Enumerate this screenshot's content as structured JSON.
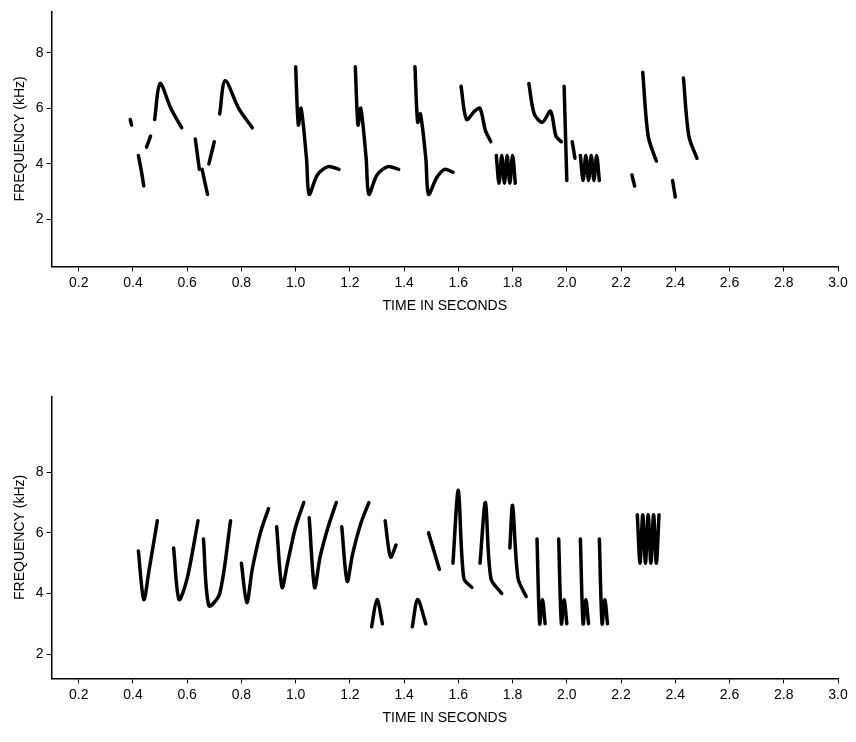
{
  "chart_data": [
    {
      "type": "line",
      "x_label": "TIME IN SECONDS",
      "y_label": "FREQUENCY (kHz)",
      "color": "#000000",
      "grid": false,
      "xlim": [
        0.1,
        3.0
      ],
      "xticks": [
        0.2,
        0.4,
        0.6,
        0.8,
        {
          "value": 1,
          "label": "1.0"
        },
        1.2,
        1.4,
        1.6,
        1.8,
        {
          "value": 2,
          "label": "2.0"
        },
        2.2,
        2.4,
        2.6,
        2.8,
        {
          "value": 3,
          "label": "3.0"
        }
      ],
      "ylim": [
        0.3,
        9.5
      ],
      "yticks": [
        2,
        4,
        6,
        8
      ],
      "notes": [
        {
          "x": [
            0.39,
            0.395
          ],
          "values": [
            5.6,
            5.4
          ]
        },
        {
          "x": [
            0.42,
            0.43,
            0.44
          ],
          "values": [
            4.3,
            3.8,
            3.2
          ]
        },
        {
          "x": [
            0.45,
            0.465
          ],
          "values": [
            4.6,
            5.0
          ]
        },
        {
          "x": [
            0.48,
            0.5,
            0.54,
            0.58
          ],
          "values": [
            5.6,
            6.9,
            6.0,
            5.3
          ]
        },
        {
          "x": [
            0.63,
            0.645
          ],
          "values": [
            4.9,
            3.8
          ]
        },
        {
          "x": [
            0.655,
            0.675
          ],
          "values": [
            3.8,
            2.9
          ]
        },
        {
          "x": [
            0.68,
            0.7
          ],
          "values": [
            4.0,
            4.8
          ]
        },
        {
          "x": [
            0.72,
            0.74,
            0.79,
            0.84
          ],
          "values": [
            5.8,
            7.0,
            6.0,
            5.3
          ]
        },
        {
          "x": [
            1.0,
            1.01,
            1.02,
            1.04,
            1.05,
            1.08,
            1.12,
            1.16
          ],
          "values": [
            7.5,
            5.4,
            6.0,
            4.2,
            2.9,
            3.6,
            3.9,
            3.8
          ]
        },
        {
          "x": [
            1.22,
            1.23,
            1.24,
            1.26,
            1.27,
            1.3,
            1.34,
            1.38
          ],
          "values": [
            7.5,
            5.4,
            6.0,
            4.2,
            2.9,
            3.6,
            3.9,
            3.8
          ]
        },
        {
          "x": [
            1.44,
            1.45,
            1.46,
            1.48,
            1.49,
            1.52,
            1.55,
            1.58
          ],
          "values": [
            7.5,
            5.5,
            5.8,
            4.2,
            2.9,
            3.5,
            3.8,
            3.7
          ]
        },
        {
          "x": [
            1.61,
            1.63,
            1.66,
            1.68,
            1.7,
            1.72
          ],
          "values": [
            6.8,
            5.6,
            5.9,
            6.0,
            5.2,
            4.8
          ]
        },
        {
          "x": [
            1.74,
            1.75,
            1.76,
            1.77,
            1.78,
            1.79,
            1.8,
            1.81
          ],
          "values": [
            4.3,
            3.3,
            4.3,
            3.3,
            4.3,
            3.3,
            4.3,
            3.3
          ]
        },
        {
          "x": [
            1.86,
            1.88,
            1.91,
            1.94,
            1.96,
            1.98
          ],
          "values": [
            6.9,
            5.8,
            5.5,
            5.9,
            5.0,
            4.8
          ]
        },
        {
          "x": [
            1.99,
            2.0
          ],
          "values": [
            6.8,
            3.4
          ]
        },
        {
          "x": [
            2.02,
            2.03
          ],
          "values": [
            4.8,
            4.2
          ]
        },
        {
          "x": [
            2.05,
            2.06,
            2.07,
            2.08,
            2.09,
            2.1,
            2.11,
            2.12
          ],
          "values": [
            4.3,
            3.4,
            4.3,
            3.4,
            4.3,
            3.4,
            4.3,
            3.4
          ]
        },
        {
          "x": [
            2.24,
            2.25
          ],
          "values": [
            3.6,
            3.2
          ]
        },
        {
          "x": [
            2.28,
            2.3,
            2.33
          ],
          "values": [
            7.3,
            5.0,
            4.1
          ]
        },
        {
          "x": [
            2.39,
            2.4
          ],
          "values": [
            3.4,
            2.8
          ]
        },
        {
          "x": [
            2.43,
            2.45,
            2.48
          ],
          "values": [
            7.1,
            5.0,
            4.2
          ]
        }
      ]
    },
    {
      "type": "line",
      "x_label": "TIME IN SECONDS",
      "y_label": "FREQUENCY (kHz)",
      "color": "#000000",
      "grid": false,
      "xlim": [
        0.1,
        3.0
      ],
      "xticks": [
        0.2,
        0.4,
        0.6,
        0.8,
        {
          "value": 1,
          "label": "1.0"
        },
        1.2,
        1.4,
        1.6,
        1.8,
        {
          "value": 2,
          "label": "2.0"
        },
        2.2,
        2.4,
        2.6,
        2.8,
        {
          "value": 3,
          "label": "3.0"
        }
      ],
      "ylim": [
        1.2,
        10.5
      ],
      "yticks": [
        2,
        4,
        6,
        8
      ],
      "notes": [
        {
          "x": [
            0.42,
            0.44,
            0.46,
            0.49
          ],
          "values": [
            5.4,
            3.8,
            4.8,
            6.4
          ]
        },
        {
          "x": [
            0.55,
            0.57,
            0.6,
            0.64
          ],
          "values": [
            5.5,
            3.8,
            4.5,
            6.4
          ]
        },
        {
          "x": [
            0.66,
            0.68,
            0.72,
            0.76
          ],
          "values": [
            5.8,
            3.6,
            4.0,
            6.4
          ]
        },
        {
          "x": [
            0.8,
            0.82,
            0.84,
            0.87,
            0.9
          ],
          "values": [
            5.0,
            3.7,
            4.8,
            6.0,
            6.8
          ]
        },
        {
          "x": [
            0.93,
            0.95,
            0.97,
            1.0,
            1.03
          ],
          "values": [
            6.2,
            4.2,
            5.0,
            6.2,
            7.0
          ]
        },
        {
          "x": [
            1.05,
            1.07,
            1.09,
            1.12,
            1.15
          ],
          "values": [
            6.5,
            4.2,
            5.2,
            6.2,
            7.0
          ]
        },
        {
          "x": [
            1.17,
            1.19,
            1.21,
            1.24,
            1.27
          ],
          "values": [
            6.2,
            4.4,
            5.3,
            6.3,
            7.0
          ]
        },
        {
          "x": [
            1.28,
            1.3,
            1.32
          ],
          "values": [
            2.9,
            3.8,
            3.0
          ]
        },
        {
          "x": [
            1.33,
            1.35,
            1.37
          ],
          "values": [
            6.4,
            5.2,
            5.6
          ]
        },
        {
          "x": [
            1.43,
            1.45,
            1.48
          ],
          "values": [
            2.9,
            3.8,
            3.0
          ]
        },
        {
          "x": [
            1.49,
            1.51,
            1.53
          ],
          "values": [
            6.0,
            5.4,
            4.8
          ]
        },
        {
          "x": [
            1.58,
            1.6,
            1.62,
            1.65
          ],
          "values": [
            5.0,
            7.4,
            4.5,
            4.2
          ]
        },
        {
          "x": [
            1.68,
            1.7,
            1.72,
            1.76
          ],
          "values": [
            5.0,
            7.0,
            4.5,
            4.0
          ]
        },
        {
          "x": [
            1.79,
            1.8,
            1.82,
            1.85
          ],
          "values": [
            5.5,
            6.9,
            4.5,
            3.9
          ]
        },
        {
          "x": [
            1.89,
            1.9,
            1.91,
            1.92
          ],
          "values": [
            5.8,
            3.0,
            3.8,
            3.0
          ]
        },
        {
          "x": [
            1.97,
            1.98,
            1.99,
            2.0
          ],
          "values": [
            5.8,
            3.0,
            3.8,
            3.0
          ]
        },
        {
          "x": [
            2.05,
            2.06,
            2.07,
            2.08
          ],
          "values": [
            5.8,
            3.0,
            3.8,
            3.0
          ]
        },
        {
          "x": [
            2.12,
            2.13,
            2.14,
            2.15
          ],
          "values": [
            5.8,
            3.0,
            3.8,
            3.0
          ]
        },
        {
          "x": [
            2.26,
            2.27,
            2.28,
            2.29,
            2.3,
            2.31,
            2.32,
            2.33,
            2.34
          ],
          "values": [
            6.6,
            5.0,
            6.6,
            5.0,
            6.6,
            5.0,
            6.6,
            5.0,
            6.6
          ]
        }
      ]
    }
  ]
}
